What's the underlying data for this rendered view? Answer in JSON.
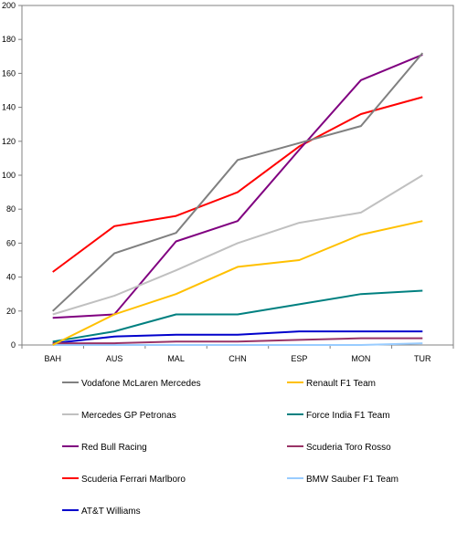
{
  "chart_data": {
    "type": "line",
    "categories": [
      "BAH",
      "AUS",
      "MAL",
      "CHN",
      "ESP",
      "MON",
      "TUR"
    ],
    "ylim": [
      0,
      200
    ],
    "yticks": [
      0,
      20,
      40,
      60,
      80,
      100,
      120,
      140,
      160,
      180,
      200
    ],
    "grid": false,
    "legend_placement": "bottom",
    "series": [
      {
        "name": "Vodafone McLaren Mercedes",
        "color": "#808080",
        "values": [
          20,
          54,
          66,
          109,
          119,
          129,
          172
        ]
      },
      {
        "name": "Renault F1 Team",
        "color": "#FFC000",
        "values": [
          0,
          18,
          30,
          46,
          50,
          65,
          73
        ]
      },
      {
        "name": "Mercedes GP Petronas",
        "color": "#C0C0C0",
        "values": [
          18,
          29,
          44,
          60,
          72,
          78,
          100
        ]
      },
      {
        "name": "Force India F1 Team",
        "color": "#008080",
        "values": [
          2,
          8,
          18,
          18,
          24,
          30,
          32
        ]
      },
      {
        "name": "Red Bull Racing",
        "color": "#800080",
        "values": [
          16,
          18,
          61,
          73,
          115,
          156,
          171
        ]
      },
      {
        "name": "Scuderia Toro Rosso",
        "color": "#993366",
        "values": [
          1,
          1,
          2,
          2,
          3,
          4,
          4
        ]
      },
      {
        "name": "Scuderia Ferrari Marlboro",
        "color": "#FF0000",
        "values": [
          43,
          70,
          76,
          90,
          117,
          136,
          146
        ]
      },
      {
        "name": "BMW Sauber F1 Team",
        "color": "#99CCFF",
        "values": [
          0,
          0,
          0,
          0,
          0,
          0,
          1
        ]
      },
      {
        "name": "AT&T Williams",
        "color": "#0000CC",
        "values": [
          1,
          5,
          6,
          6,
          8,
          8,
          8
        ]
      }
    ]
  }
}
